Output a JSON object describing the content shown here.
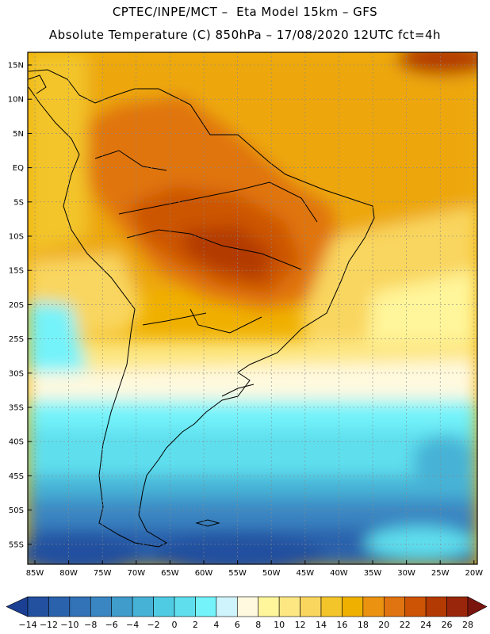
{
  "header": {
    "line1": "CPTEC/INPE/MCT –  Eta Model 15km – GFS",
    "line2": "Absolute Temperature (C) 850hPa – 17/08/2020 12UTC fct=4h"
  },
  "map": {
    "lat_labels": [
      "15N",
      "10N",
      "5N",
      "EQ",
      "5S",
      "10S",
      "15S",
      "20S",
      "25S",
      "30S",
      "35S",
      "40S",
      "45S",
      "50S",
      "55S"
    ],
    "lon_labels": [
      "85W",
      "80W",
      "75W",
      "70W",
      "65W",
      "60W",
      "55W",
      "50W",
      "45W",
      "40W",
      "35W",
      "30W",
      "25W",
      "20W"
    ],
    "variable": "Absolute Temperature",
    "units": "C",
    "level": "850hPa"
  },
  "colorbar": {
    "ticks": [
      "-14",
      "-12",
      "-10",
      "-8",
      "-6",
      "-4",
      "-2",
      "0",
      "2",
      "4",
      "6",
      "8",
      "10",
      "12",
      "14",
      "16",
      "18",
      "20",
      "22",
      "24",
      "26",
      "28"
    ],
    "colors": [
      "#1a3f93",
      "#23509f",
      "#2b62ac",
      "#3272b6",
      "#3a86c2",
      "#3f9ccb",
      "#46b2d6",
      "#4fcbe3",
      "#5fdfee",
      "#74f3fa",
      "#cff4fb",
      "#fff9df",
      "#fff59a",
      "#fde783",
      "#f9d65e",
      "#f3c52a",
      "#f0b000",
      "#eb9211",
      "#e07410",
      "#cc5404",
      "#b33a02",
      "#99260a",
      "#7a150e"
    ]
  }
}
